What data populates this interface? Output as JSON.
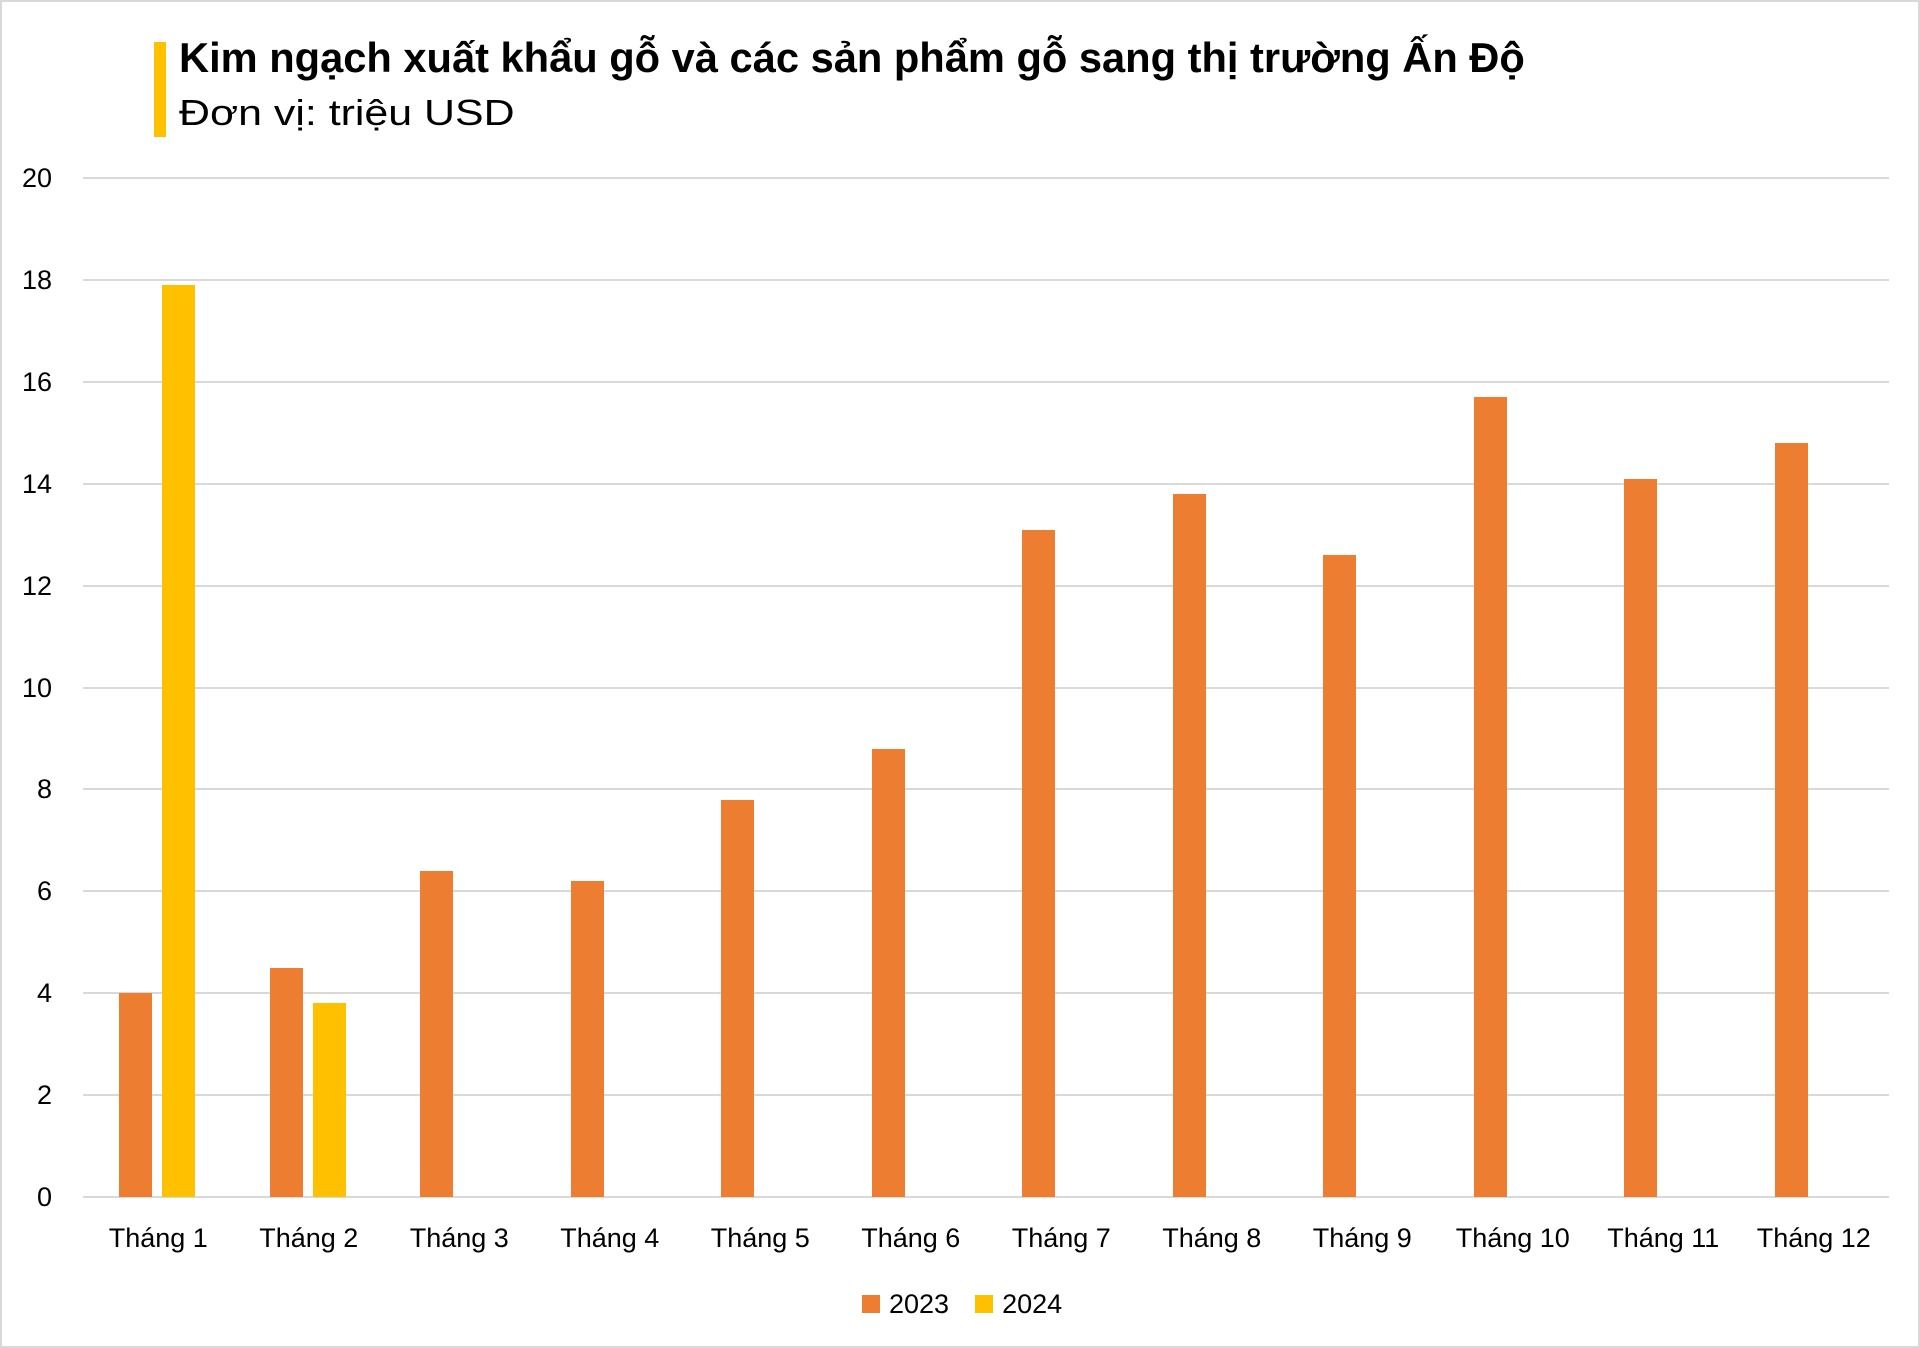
{
  "header": {
    "title": "Kim ngạch xuất khẩu gỗ và các sản phẩm gỗ sang thị trường Ấn Độ",
    "subtitle": "Đơn vị: triệu USD",
    "accent_color": "#FFC000"
  },
  "legend": [
    {
      "label": "2023",
      "color": "#ED7D31"
    },
    {
      "label": "2024",
      "color": "#FFC000"
    }
  ],
  "chart_data": {
    "type": "bar",
    "title": "Kim ngạch xuất khẩu gỗ và các sản phẩm gỗ sang thị trường Ấn Độ",
    "subtitle": "Đơn vị: triệu USD",
    "xlabel": "",
    "ylabel": "triệu USD",
    "categories": [
      "Tháng 1",
      "Tháng 2",
      "Tháng 3",
      "Tháng 4",
      "Tháng 5",
      "Tháng 6",
      "Tháng 7",
      "Tháng 8",
      "Tháng 9",
      "Tháng 10",
      "Tháng 11",
      "Tháng 12"
    ],
    "series": [
      {
        "name": "2023",
        "color": "#ED7D31",
        "values": [
          4.0,
          4.5,
          6.4,
          6.2,
          7.8,
          8.8,
          13.1,
          13.8,
          12.6,
          15.7,
          14.1,
          14.8
        ]
      },
      {
        "name": "2024",
        "color": "#FFC000",
        "values": [
          17.9,
          3.8,
          null,
          null,
          null,
          null,
          null,
          null,
          null,
          null,
          null,
          null
        ]
      }
    ],
    "ylim": [
      0,
      20
    ],
    "yticks": [
      0,
      2,
      4,
      6,
      8,
      10,
      12,
      14,
      16,
      18,
      20
    ],
    "grid": true,
    "legend_position": "bottom"
  }
}
